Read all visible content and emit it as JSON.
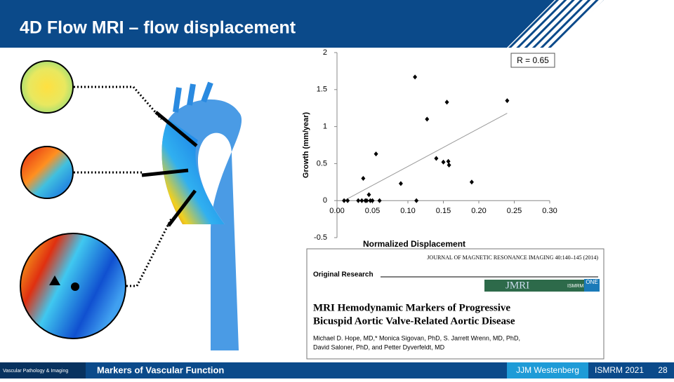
{
  "header": {
    "title": "4D Flow MRI – flow displacement"
  },
  "chart_data": {
    "type": "scatter",
    "x_label": "Normalized Displacement",
    "y_label": "Growth (mm/year)",
    "annotation": "R = 0.65",
    "color": "#000000",
    "x": [
      0.01,
      0.015,
      0.03,
      0.035,
      0.037,
      0.04,
      0.042,
      0.045,
      0.047,
      0.05,
      0.055,
      0.06,
      0.09,
      0.11,
      0.112,
      0.127,
      0.14,
      0.15,
      0.155,
      0.157,
      0.158,
      0.19,
      0.24
    ],
    "values": [
      0,
      0,
      0,
      0,
      0.3,
      0,
      0,
      0.08,
      0,
      0,
      0.63,
      0,
      0.23,
      1.67,
      0,
      1.1,
      0.57,
      0.52,
      1.33,
      0.53,
      0.48,
      0.25,
      1.35
    ],
    "trendline": {
      "color": "#999999",
      "x": [
        0.01,
        0.24
      ],
      "values": [
        0,
        1.18
      ]
    },
    "xlim": [
      0,
      0.3
    ],
    "ylim": [
      -0.5,
      2
    ],
    "xticks": [
      {
        "value": 0,
        "label": "0.00"
      },
      {
        "value": 0.05,
        "label": "0.05"
      },
      {
        "value": 0.1,
        "label": "0.10"
      },
      {
        "value": 0.15,
        "label": "0.15"
      },
      {
        "value": 0.2,
        "label": "0.20"
      },
      {
        "value": 0.25,
        "label": "0.25"
      },
      {
        "value": 0.3,
        "label": "0.30"
      }
    ],
    "yticks": [
      -0.5,
      0,
      0.5,
      1,
      1.5,
      2
    ]
  },
  "paper": {
    "journal": "JOURNAL OF MAGNETIC RESONANCE IMAGING 40:140–145 (2014)",
    "section": "Original Research",
    "logo": "JMRI",
    "society": "ISMRM",
    "badge": "ONE",
    "title_lines": [
      "MRI Hemodynamic Markers of Progressive",
      "Bicuspid Aortic Valve-Related Aortic Disease"
    ],
    "author_lines": [
      "Michael D. Hope, MD,* Monica Sigovan, PhD, S. Jarrett Wrenn, MD, PhD,",
      "David Saloner, PhD, and Petter Dyverfeldt, MD"
    ]
  },
  "footer": {
    "group": "Vascular Pathology & Imaging",
    "topic": "Markers of Vascular Function",
    "presenter": "JJM Westenberg",
    "meeting": "ISMRM 2021",
    "page": "28"
  }
}
